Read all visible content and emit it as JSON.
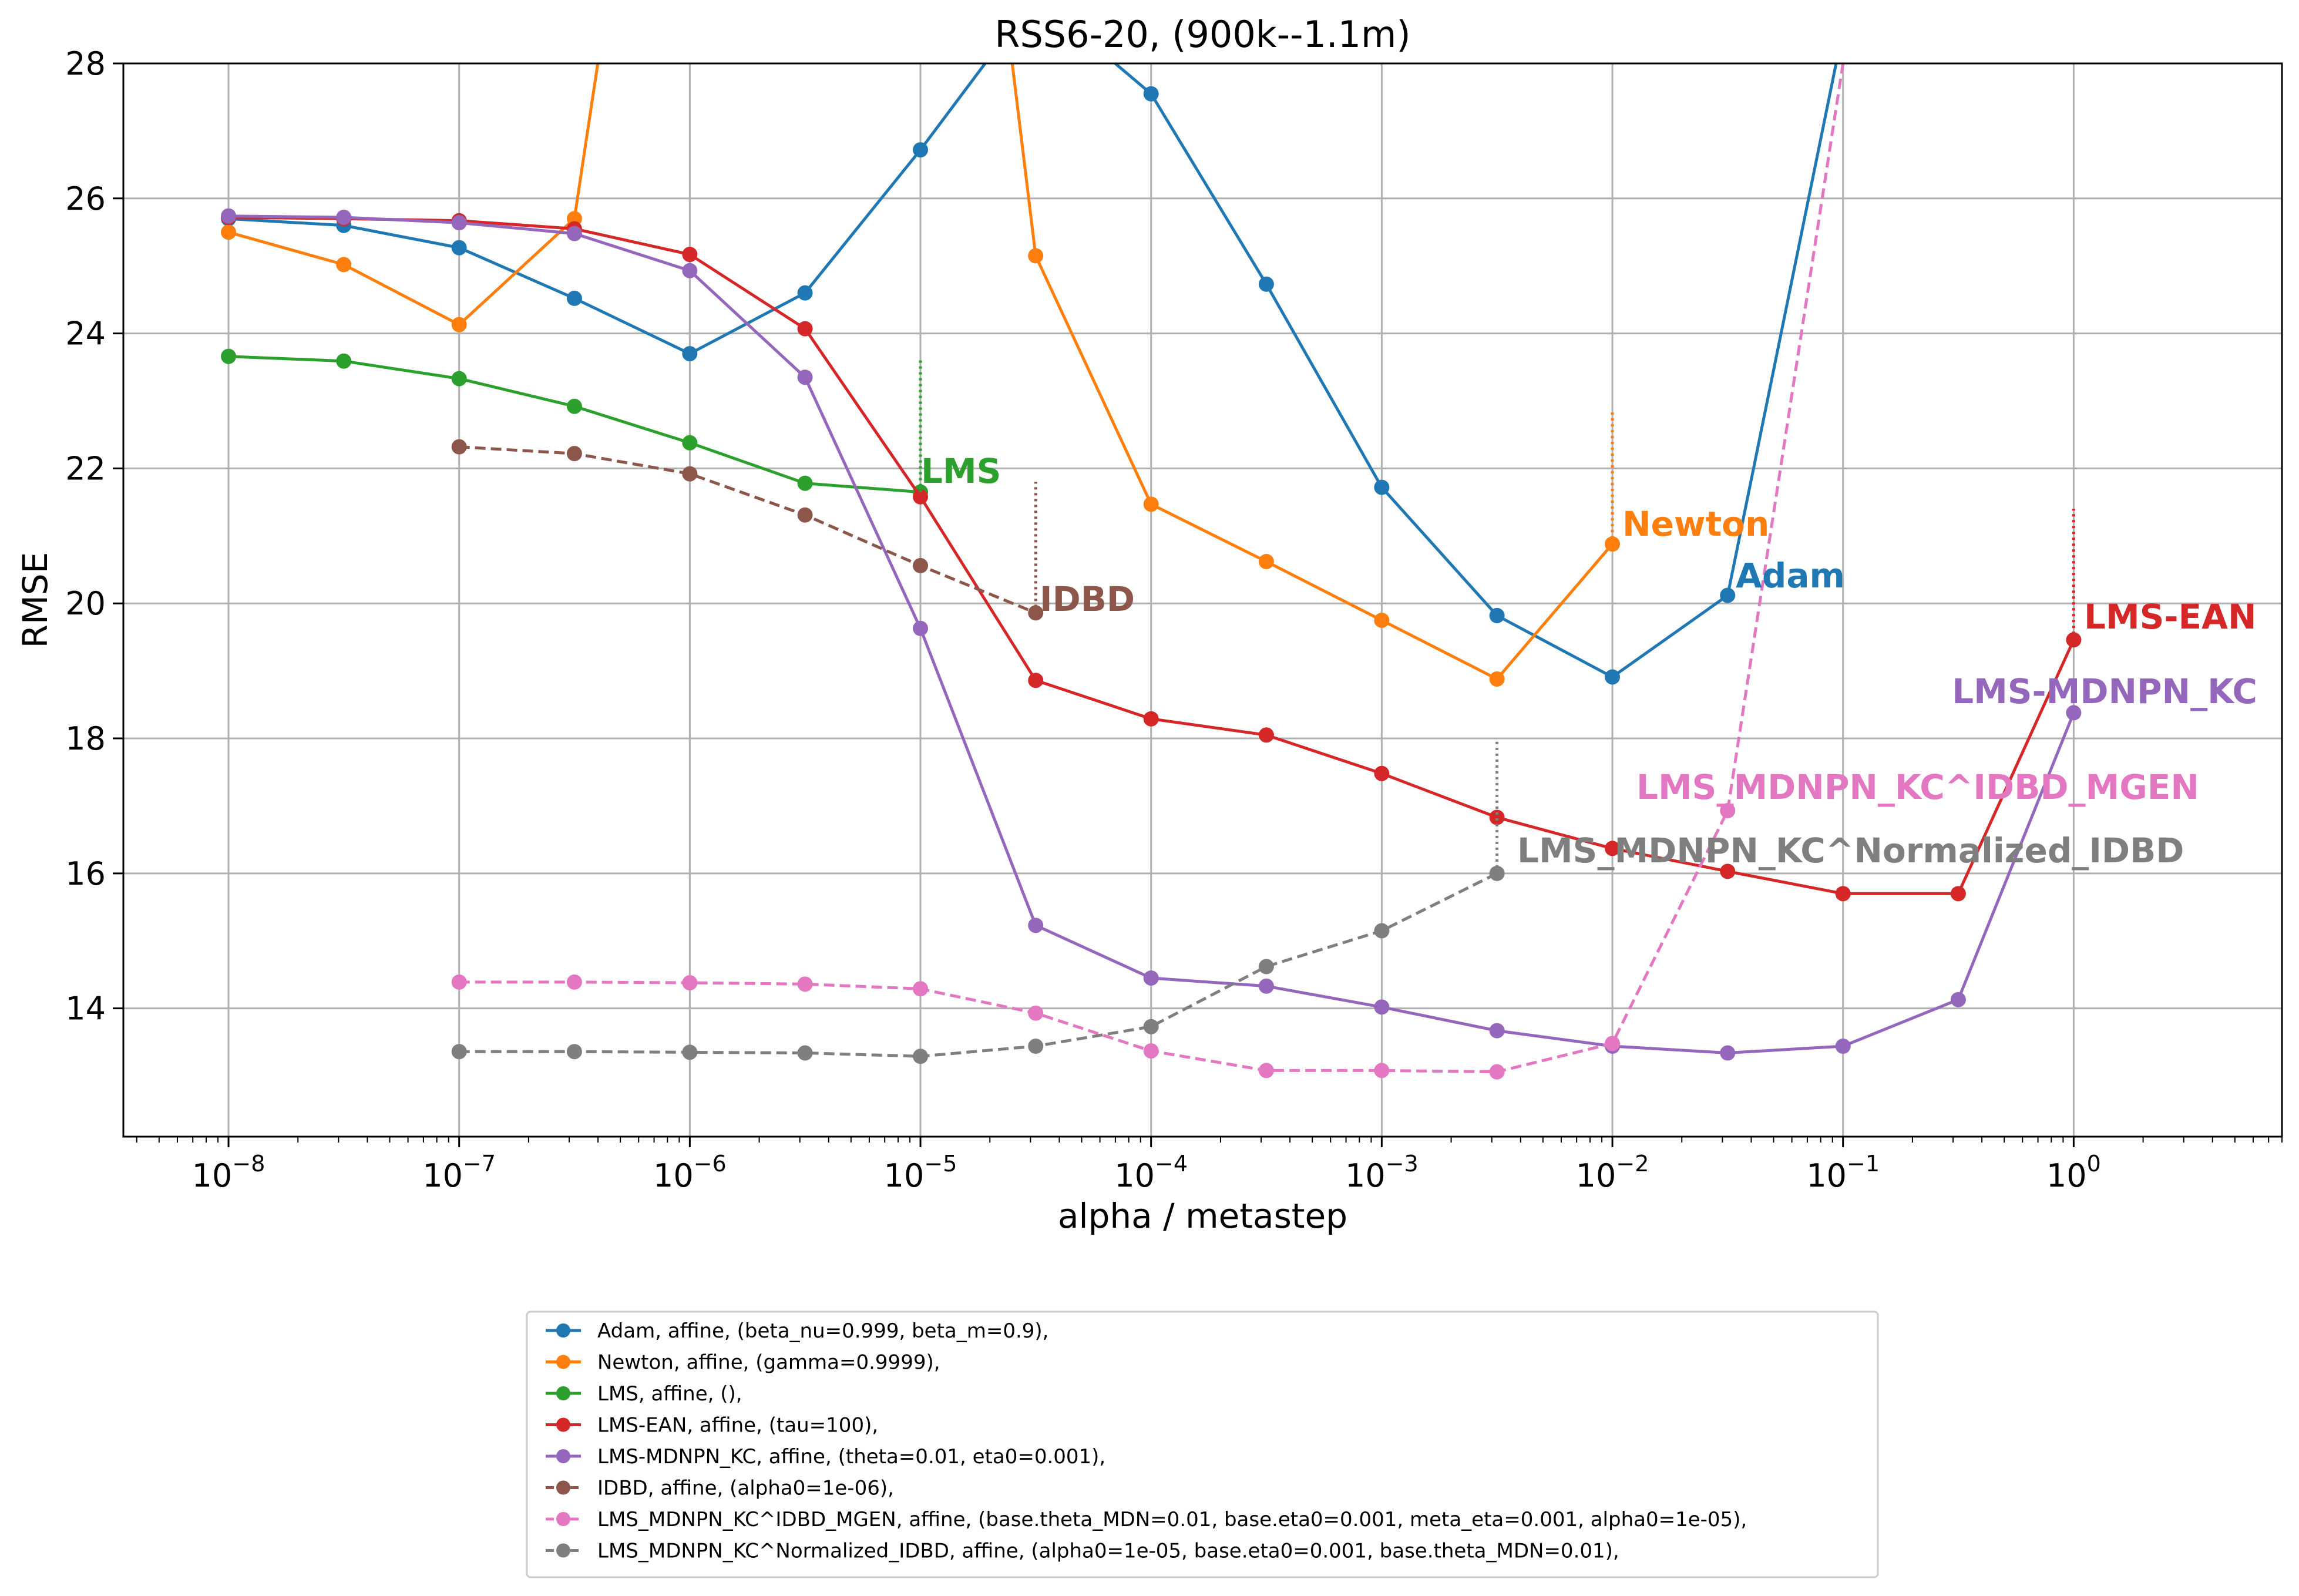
{
  "chart_data": {
    "type": "line",
    "title": "RSS6-20,   (900k--1.1m)",
    "xlabel": "alpha / metastep",
    "ylabel": "RMSE",
    "xscale": "log",
    "xlim": [
      3.5e-09,
      8
    ],
    "ylim": [
      12.1,
      28
    ],
    "grid": true,
    "x_ticks": [
      {
        "value": 1e-08,
        "base": "10",
        "exp": "−8"
      },
      {
        "value": 1e-07,
        "base": "10",
        "exp": "−7"
      },
      {
        "value": 1e-06,
        "base": "10",
        "exp": "−6"
      },
      {
        "value": 1e-05,
        "base": "10",
        "exp": "−5"
      },
      {
        "value": 0.0001,
        "base": "10",
        "exp": "−4"
      },
      {
        "value": 0.001,
        "base": "10",
        "exp": "−3"
      },
      {
        "value": 0.01,
        "base": "10",
        "exp": "−2"
      },
      {
        "value": 0.1,
        "base": "10",
        "exp": "−1"
      },
      {
        "value": 1,
        "base": "10",
        "exp": "0"
      }
    ],
    "y_ticks": [
      {
        "value": 14,
        "label": "14"
      },
      {
        "value": 16,
        "label": "16"
      },
      {
        "value": 18,
        "label": "18"
      },
      {
        "value": 20,
        "label": "20"
      },
      {
        "value": 22,
        "label": "22"
      },
      {
        "value": 24,
        "label": "24"
      },
      {
        "value": 26,
        "label": "26"
      },
      {
        "value": 28,
        "label": "28"
      }
    ],
    "legend_position": "below plot, center",
    "series": [
      {
        "name": "Adam, affine, (beta_nu=0.999, beta_m=0.9),",
        "short_label": "Adam",
        "color": "#1f77b4",
        "dashed": false,
        "x": [
          1e-08,
          3.16e-08,
          1e-07,
          3.16e-07,
          1e-06,
          3.16e-06,
          1e-05,
          3.16e-05,
          0.0001,
          0.000316,
          0.001,
          0.00316,
          0.01,
          0.0316,
          0.1
        ],
        "y": [
          25.7,
          25.6,
          25.27,
          24.52,
          23.7,
          24.6,
          26.72,
          29.0,
          27.55,
          24.73,
          21.72,
          19.82,
          18.91,
          20.12,
          28.5
        ],
        "markers": [
          true,
          true,
          true,
          true,
          true,
          true,
          true,
          false,
          true,
          true,
          true,
          true,
          true,
          true,
          false
        ],
        "annotation": {
          "x": 0.0316,
          "y": 20.12,
          "label_x": 0.037,
          "label_y": 20.12,
          "stem_top": null
        }
      },
      {
        "name": "Newton, affine, (gamma=0.9999),",
        "short_label": "Newton",
        "color": "#ff7f0e",
        "dashed": false,
        "x": [
          1e-08,
          3.16e-08,
          1e-07,
          3.16e-07,
          4.2e-07,
          2.4e-05,
          3.16e-05,
          0.0001,
          0.000316,
          0.001,
          0.00316,
          0.01
        ],
        "y": [
          25.5,
          25.02,
          24.13,
          25.7,
          28.5,
          28.5,
          25.15,
          21.47,
          20.62,
          19.75,
          18.88,
          20.88
        ],
        "markers": [
          true,
          true,
          true,
          true,
          false,
          false,
          true,
          true,
          true,
          true,
          true,
          true
        ],
        "annotation": {
          "x": 0.01,
          "y": 20.88,
          "label_x": 0.0118,
          "label_y": 20.88,
          "stem_top": 22.85
        }
      },
      {
        "name": "LMS, affine, (),",
        "short_label": "LMS",
        "color": "#2ca02c",
        "dashed": false,
        "x": [
          1e-08,
          3.16e-08,
          1e-07,
          3.16e-07,
          1e-06,
          3.16e-06,
          1e-05
        ],
        "y": [
          23.66,
          23.59,
          23.33,
          22.92,
          22.38,
          21.78,
          21.65
        ],
        "markers": [
          true,
          true,
          true,
          true,
          true,
          true,
          true
        ],
        "annotation": {
          "x": 1e-05,
          "y": 21.65,
          "label_x": 1.18e-05,
          "label_y": 21.65,
          "stem_top": 23.6
        }
      },
      {
        "name": "LMS-EAN, affine, (tau=100),",
        "short_label": "LMS-EAN",
        "color": "#d62728",
        "dashed": false,
        "x": [
          1e-08,
          3.16e-08,
          1e-07,
          3.16e-07,
          1e-06,
          3.16e-06,
          1e-05,
          3.16e-05,
          0.0001,
          0.000316,
          0.001,
          0.00316,
          0.01,
          0.0316,
          0.1,
          0.316,
          1
        ],
        "y": [
          25.72,
          25.7,
          25.67,
          25.55,
          25.17,
          24.07,
          21.58,
          18.86,
          18.29,
          18.05,
          17.48,
          16.83,
          16.37,
          16.03,
          15.7,
          15.7,
          19.46
        ],
        "markers": [
          true,
          true,
          true,
          true,
          true,
          true,
          true,
          true,
          true,
          true,
          true,
          true,
          true,
          true,
          true,
          true,
          true
        ],
        "annotation": {
          "x": 1,
          "y": 19.46,
          "label_x": 1.18,
          "label_y": 19.46,
          "stem_top": 21.4
        }
      },
      {
        "name": "LMS-MDNPN_KC, affine, (theta=0.01, eta0=0.001),",
        "short_label": "LMS-MDNPN_KC",
        "color": "#9467bd",
        "dashed": false,
        "x": [
          1e-08,
          3.16e-08,
          1e-07,
          3.16e-07,
          1e-06,
          3.16e-06,
          1e-05,
          3.16e-05,
          0.0001,
          0.000316,
          0.001,
          0.00316,
          0.01,
          0.0316,
          0.1,
          0.316,
          1
        ],
        "y": [
          25.74,
          25.72,
          25.64,
          25.48,
          24.93,
          23.35,
          19.63,
          15.23,
          14.45,
          14.33,
          14.02,
          13.67,
          13.44,
          13.34,
          13.44,
          14.13,
          18.38
        ],
        "markers": [
          true,
          true,
          true,
          true,
          true,
          true,
          true,
          true,
          true,
          true,
          true,
          true,
          true,
          true,
          true,
          true,
          true
        ],
        "annotation": {
          "x": 1,
          "y": 18.38,
          "label_x": 1,
          "label_y": 18.38,
          "stem_top": null
        }
      },
      {
        "name": "IDBD, affine, (alpha0=1e-06),",
        "short_label": "IDBD",
        "color": "#8c564b",
        "dashed": true,
        "x": [
          1e-07,
          3.16e-07,
          1e-06,
          3.16e-06,
          1e-05,
          3.16e-05
        ],
        "y": [
          22.32,
          22.22,
          21.92,
          21.31,
          20.56,
          19.86
        ],
        "markers": [
          true,
          true,
          true,
          true,
          true,
          true
        ],
        "annotation": {
          "x": 3.16e-05,
          "y": 19.86,
          "label_x": 3.7e-05,
          "label_y": 19.86,
          "stem_top": 21.8
        }
      },
      {
        "name": "LMS_MDNPN_KC^IDBD_MGEN, affine, (base.theta_MDN=0.01, base.eta0=0.001, meta_eta=0.001, alpha0=1e-05),",
        "short_label": "LMS_MDNPN_KC^IDBD_MGEN",
        "color": "#e377c2",
        "dashed": true,
        "x": [
          1e-07,
          3.16e-07,
          1e-06,
          3.16e-06,
          1e-05,
          3.16e-05,
          0.0001,
          0.000316,
          0.001,
          0.00316,
          0.01,
          0.0316,
          0.1
        ],
        "y": [
          14.39,
          14.39,
          14.38,
          14.36,
          14.29,
          13.93,
          13.37,
          13.08,
          13.08,
          13.06,
          13.48,
          16.93,
          28.0
        ],
        "markers": [
          true,
          true,
          true,
          true,
          true,
          true,
          true,
          true,
          true,
          true,
          true,
          true,
          false
        ],
        "annotation": {
          "x": 0.0316,
          "y": 16.93,
          "label_x": 0.0134,
          "label_y": 16.93,
          "stem_top": null
        }
      },
      {
        "name": "LMS_MDNPN_KC^Normalized_IDBD, affine, (alpha0=1e-05, base.eta0=0.001, base.theta_MDN=0.01),",
        "short_label": "LMS_MDNPN_KC^Normalized_IDBD",
        "color": "#7f7f7f",
        "dashed": true,
        "x": [
          1e-07,
          3.16e-07,
          1e-06,
          3.16e-06,
          1e-05,
          3.16e-05,
          0.0001,
          0.000316,
          0.001,
          0.00316
        ],
        "y": [
          13.36,
          13.36,
          13.35,
          13.34,
          13.29,
          13.44,
          13.73,
          14.62,
          15.15,
          16.0
        ],
        "markers": [
          true,
          true,
          true,
          true,
          true,
          true,
          true,
          true,
          true,
          true
        ],
        "annotation": {
          "x": 0.00316,
          "y": 16.0,
          "label_x": 0.0039,
          "label_y": 16.0,
          "stem_top": 17.95
        }
      }
    ]
  }
}
